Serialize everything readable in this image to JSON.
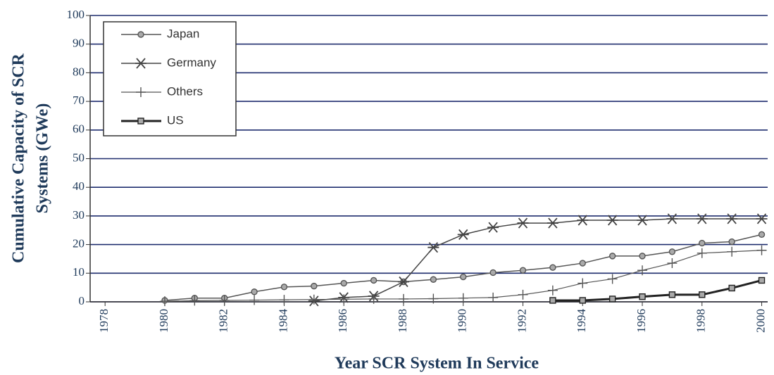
{
  "chart_data": {
    "type": "line",
    "xlabel": "Year SCR System In Service",
    "ylabel": [
      "Cumulative Capacity of SCR",
      "Systems (GWe)"
    ],
    "x": [
      1980,
      1981,
      1982,
      1983,
      1984,
      1985,
      1986,
      1987,
      1988,
      1989,
      1990,
      1991,
      1992,
      1993,
      1994,
      1995,
      1996,
      1997,
      1998,
      1999,
      2000
    ],
    "series": [
      {
        "name": "Japan",
        "color": "#555555",
        "marker": "circle",
        "line_width": 1.5,
        "values": [
          0.5,
          1.3,
          1.3,
          3.5,
          5.2,
          5.5,
          6.5,
          7.5,
          7,
          7.8,
          8.7,
          10.2,
          11,
          12,
          13.5,
          16,
          16,
          17.5,
          20.5,
          21,
          23.5
        ]
      },
      {
        "name": "Germany",
        "color": "#444444",
        "marker": "star",
        "line_width": 1.5,
        "values": [
          null,
          null,
          null,
          null,
          null,
          0.3,
          1.5,
          2,
          7,
          19,
          23.5,
          26,
          27.5,
          27.5,
          28.5,
          28.5,
          28.5,
          29,
          29,
          29,
          29
        ]
      },
      {
        "name": "Others",
        "color": "#555555",
        "marker": "plus",
        "line_width": 1.2,
        "values": [
          0.2,
          0.4,
          0.5,
          0.6,
          0.7,
          0.8,
          0.9,
          1,
          1,
          1.1,
          1.3,
          1.5,
          2.5,
          4,
          6.5,
          8,
          11,
          13.5,
          17,
          17.5,
          18
        ]
      },
      {
        "name": "US",
        "color": "#222222",
        "marker": "square",
        "line_width": 3,
        "values": [
          null,
          null,
          null,
          null,
          null,
          null,
          null,
          null,
          null,
          null,
          null,
          null,
          null,
          0.5,
          0.5,
          1,
          1.8,
          2.5,
          2.5,
          4.8,
          7.5
        ]
      }
    ],
    "xlim": [
      1977.5,
      2000.2
    ],
    "xticks": [
      1978,
      1980,
      1982,
      1984,
      1986,
      1988,
      1990,
      1992,
      1994,
      1996,
      1998,
      2000
    ],
    "ylim": [
      0,
      100
    ],
    "yticks": [
      0,
      10,
      20,
      30,
      40,
      50,
      60,
      70,
      80,
      90,
      100
    ],
    "grid": true,
    "grid_color": "#1f2d6e",
    "legend": "upper left"
  }
}
